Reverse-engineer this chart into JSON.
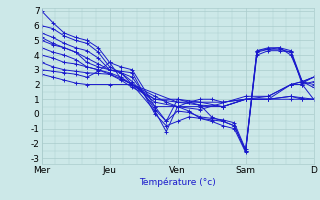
{
  "title": "",
  "xlabel": "Température (°c)",
  "ylabel": "",
  "xlim": [
    0,
    120
  ],
  "ylim": [
    -3.4,
    7.2
  ],
  "yticks": [
    -3,
    -2,
    -1,
    0,
    1,
    2,
    3,
    4,
    5,
    6,
    7
  ],
  "xtick_positions": [
    0,
    30,
    60,
    90,
    120
  ],
  "xtick_labels": [
    "Mer",
    "Jeu",
    "Ven",
    "Sam",
    "D"
  ],
  "bg_color": "#cce8e8",
  "plot_bg_color": "#cce8e8",
  "line_color": "#1a1acc",
  "grid_color": "#aacccc",
  "series": [
    [
      0,
      7,
      5,
      6.2,
      10,
      5.5,
      15,
      5.2,
      20,
      5,
      25,
      4.5,
      30,
      3.5,
      35,
      3.2,
      40,
      3,
      50,
      0.5,
      55,
      -0.5,
      60,
      1,
      65,
      0.8,
      70,
      0.6,
      75,
      -0.2,
      80,
      -0.5,
      85,
      -0.8,
      90,
      -2.5,
      95,
      4,
      100,
      4.3,
      105,
      4.3,
      110,
      4.2,
      115,
      2,
      120,
      1
    ],
    [
      0,
      6,
      5,
      5.8,
      10,
      5.3,
      15,
      5,
      20,
      4.8,
      25,
      4.2,
      30,
      3.2,
      35,
      2.8,
      40,
      2,
      50,
      0.2,
      55,
      -1.2,
      60,
      0.5,
      65,
      0.2,
      70,
      -0.3,
      75,
      -0.5,
      80,
      -0.8,
      85,
      -1,
      90,
      -2.6,
      95,
      4.2,
      100,
      4.4,
      105,
      4.4,
      110,
      4.2,
      115,
      2.1,
      120,
      2.5
    ],
    [
      0,
      5.5,
      5,
      5.2,
      10,
      4.8,
      15,
      4.5,
      20,
      4.3,
      25,
      3.8,
      30,
      3,
      35,
      2.9,
      40,
      2.8,
      50,
      0,
      55,
      -0.8,
      60,
      -0.5,
      65,
      -0.2,
      70,
      -0.3,
      75,
      -0.4,
      80,
      -0.5,
      85,
      -0.8,
      90,
      -2.5,
      95,
      4.3,
      100,
      4.5,
      105,
      4.5,
      110,
      4.3,
      115,
      2.2,
      120,
      2
    ],
    [
      0,
      5.2,
      5,
      4.8,
      10,
      4.5,
      15,
      4.2,
      20,
      3.8,
      25,
      3.4,
      30,
      3,
      35,
      2.8,
      40,
      2.5,
      50,
      0.3,
      55,
      -0.5,
      60,
      0.2,
      65,
      0.1,
      70,
      -0.2,
      75,
      -0.3,
      80,
      -0.4,
      85,
      -0.6,
      90,
      -2.4,
      95,
      4.3,
      100,
      4.4,
      105,
      4.5,
      110,
      4,
      115,
      2.2,
      120,
      1.8
    ],
    [
      0,
      5,
      5,
      4.7,
      10,
      4.5,
      15,
      4.2,
      20,
      3.5,
      25,
      3.2,
      30,
      3,
      35,
      2.8,
      40,
      2.2,
      50,
      0.5,
      60,
      0.5,
      70,
      0.5,
      80,
      0.5,
      90,
      1,
      100,
      1,
      110,
      1.2,
      115,
      1.1,
      120,
      1
    ],
    [
      0,
      4.5,
      5,
      4.2,
      10,
      4,
      15,
      3.7,
      20,
      3.2,
      25,
      3,
      30,
      2.8,
      35,
      2.5,
      40,
      2,
      60,
      0.8,
      80,
      0.8,
      90,
      1,
      100,
      1,
      110,
      1,
      115,
      1,
      120,
      1
    ],
    [
      0,
      4,
      5,
      3.8,
      10,
      3.5,
      15,
      3.4,
      20,
      3.2,
      25,
      3,
      30,
      2.7,
      35,
      2.4,
      40,
      2,
      50,
      1.2,
      55,
      0.8,
      60,
      0.5,
      65,
      0.8,
      70,
      1,
      75,
      1,
      80,
      0.8,
      90,
      1,
      100,
      1,
      110,
      1.2,
      115,
      1,
      120,
      1
    ],
    [
      0,
      3.5,
      5,
      3.2,
      10,
      3,
      15,
      2.9,
      20,
      2.8,
      25,
      2.75,
      30,
      2.7,
      35,
      2.3,
      40,
      1.8,
      50,
      1,
      60,
      0.8,
      70,
      0.6,
      80,
      0.5,
      90,
      1,
      100,
      1.2,
      110,
      2,
      115,
      2.2,
      120,
      2.5
    ],
    [
      0,
      3,
      5,
      2.9,
      10,
      2.8,
      15,
      2.7,
      20,
      2.5,
      25,
      2.9,
      30,
      3.5,
      35,
      2.4,
      40,
      2,
      50,
      1,
      60,
      1,
      70,
      0.8,
      80,
      0.5,
      90,
      1,
      100,
      1,
      110,
      2,
      115,
      2.2,
      120,
      2.5
    ],
    [
      0,
      2.7,
      5,
      2.5,
      10,
      2.3,
      15,
      2.1,
      20,
      2,
      30,
      2,
      40,
      2,
      50,
      0.8,
      60,
      0.5,
      70,
      0.3,
      90,
      1.2,
      100,
      1.2,
      110,
      2,
      115,
      2,
      120,
      2.2
    ]
  ]
}
